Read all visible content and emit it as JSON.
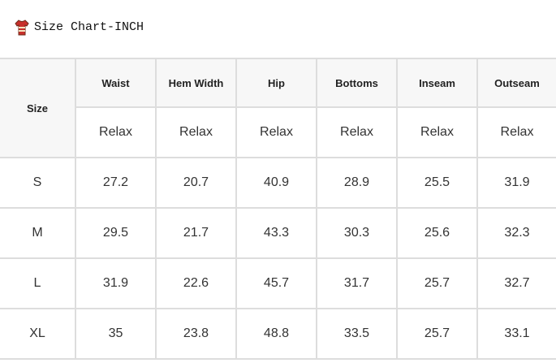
{
  "header": {
    "title": "Size Chart-INCH"
  },
  "table": {
    "corner": "Size",
    "columns": [
      "Waist",
      "Hem Width",
      "Hip",
      "Bottoms",
      "Inseam",
      "Outseam"
    ],
    "fit": [
      "Relax",
      "Relax",
      "Relax",
      "Relax",
      "Relax",
      "Relax"
    ],
    "rows": [
      [
        "S",
        "27.2",
        "20.7",
        "40.9",
        "28.9",
        "25.5",
        "31.9"
      ],
      [
        "M",
        "29.5",
        "21.7",
        "43.3",
        "30.3",
        "25.6",
        "32.3"
      ],
      [
        "L",
        "31.9",
        "22.6",
        "45.7",
        "31.7",
        "25.7",
        "32.7"
      ],
      [
        "XL",
        "35",
        "23.8",
        "48.8",
        "33.5",
        "25.7",
        "33.1"
      ]
    ]
  }
}
